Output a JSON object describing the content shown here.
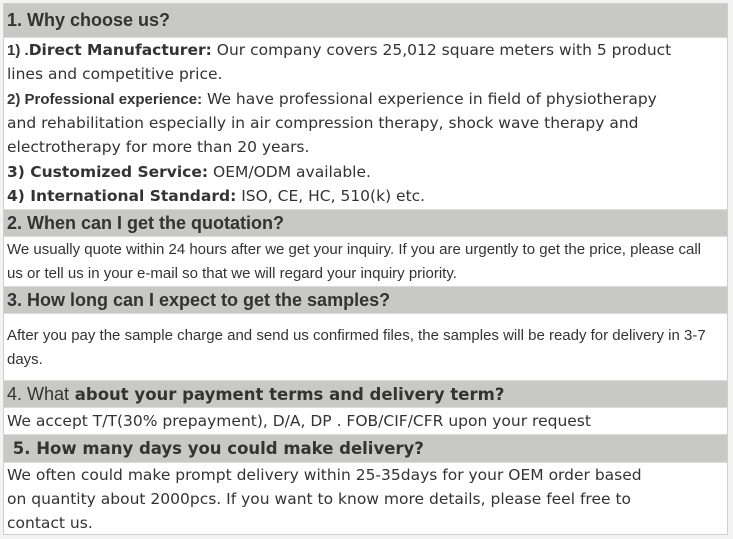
{
  "sections": [
    {
      "title": "1. Why choose us?",
      "items": [
        {
          "num": "1) .",
          "label": "Direct Manufacturer:",
          "lines": [
            " Our company covers 25,012 square meters with 5 product",
            "lines and competitive price."
          ]
        },
        {
          "num": "2) ",
          "label": "Professional experience:",
          "lines": [
            " We have professional experience in field of physiotherapy",
            "and rehabilitation especially in air compression therapy, shock wave therapy and",
            "electrotherapy for more than 20 years."
          ]
        },
        {
          "num": "3) ",
          "label": "Customized Service:",
          "lines": [
            " OEM/ODM available."
          ]
        },
        {
          "num": "4) ",
          "label": "International Standard:",
          "lines": [
            " ISO, CE, HC, 510(k) etc."
          ]
        }
      ]
    },
    {
      "title": "2. When can I get the quotation?",
      "lines": [
        "We usually quote within 24 hours after we get your inquiry. If you are urgently to get the price, please call",
        "us or tell us in your e-mail so that we will regard your inquiry priority."
      ]
    },
    {
      "title": "3. How long can I expect to get the samples?",
      "lines": [
        "After you pay the sample charge and send us confirmed files, the samples will be ready for delivery in 3-7",
        "days."
      ]
    },
    {
      "title_prefix": "4. What",
      "title": " about your payment terms and delivery term?",
      "lines": [
        "We accept T/T(30% prepayment), D/A, DP . FOB/CIF/CFR upon your request"
      ]
    },
    {
      "title": " 5. How many days you could make delivery?",
      "lines": [
        "We often could make prompt delivery within 25-35days for your OEM order based",
        "on quantity about 2000pcs. If you want to know more details, please feel free to",
        "contact us."
      ]
    }
  ]
}
